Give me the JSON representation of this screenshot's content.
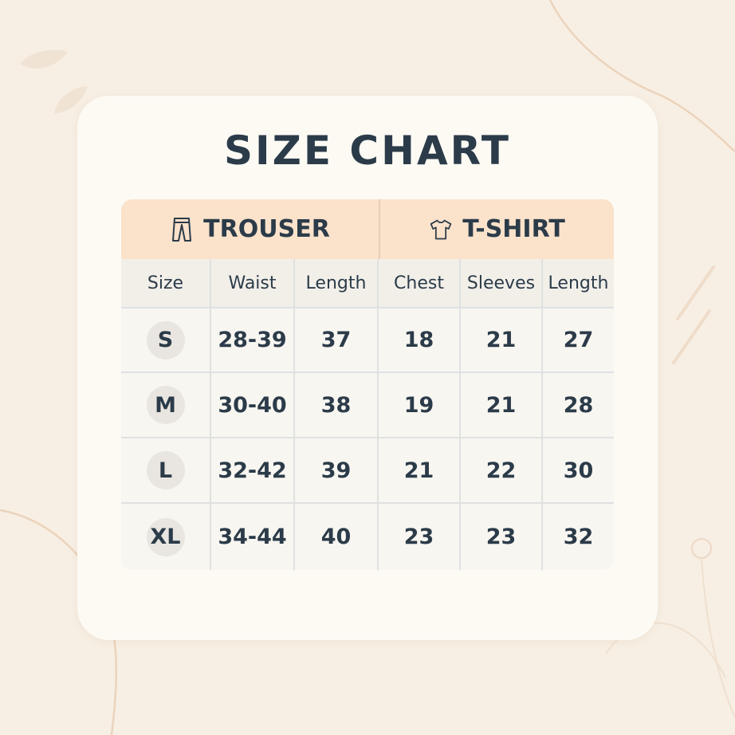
{
  "title": "SIZE CHART",
  "groups": [
    {
      "label": "TROUSER",
      "icon": "trousers-icon"
    },
    {
      "label": "T-SHIRT",
      "icon": "tshirt-icon"
    }
  ],
  "columns": [
    "Size",
    "Waist",
    "Length",
    "Chest",
    "Sleeves",
    "Length"
  ],
  "rows": [
    [
      "S",
      "28-39",
      "37",
      "18",
      "21",
      "27"
    ],
    [
      "M",
      "30-40",
      "38",
      "19",
      "21",
      "28"
    ],
    [
      "L",
      "32-42",
      "39",
      "21",
      "22",
      "30"
    ],
    [
      "XL",
      "34-44",
      "40",
      "23",
      "23",
      "32"
    ]
  ],
  "colors": {
    "background": "#f7efe4",
    "card": "#fdfaf4",
    "header": "#fbe2cb",
    "text": "#2b3b49"
  }
}
